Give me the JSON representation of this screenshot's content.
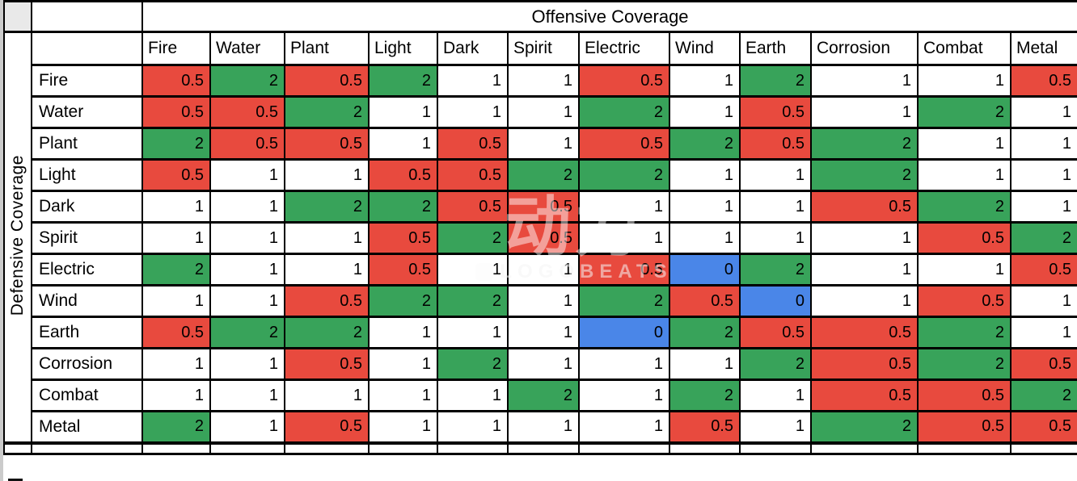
{
  "chart_data": {
    "type": "heatmap",
    "xlabel": "Offensive Coverage",
    "ylabel": "Defensive Coverage",
    "columns": [
      "Fire",
      "Water",
      "Plant",
      "Light",
      "Dark",
      "Spirit",
      "Electric",
      "Wind",
      "Earth",
      "Corrosion",
      "Combat",
      "Metal"
    ],
    "rows": [
      "Fire",
      "Water",
      "Plant",
      "Light",
      "Dark",
      "Spirit",
      "Electric",
      "Wind",
      "Earth",
      "Corrosion",
      "Combat",
      "Metal"
    ],
    "matrix": [
      [
        0.5,
        2,
        0.5,
        2,
        1,
        1,
        0.5,
        1,
        2,
        1,
        1,
        0.5
      ],
      [
        0.5,
        0.5,
        2,
        1,
        1,
        1,
        2,
        1,
        0.5,
        1,
        2,
        1
      ],
      [
        2,
        0.5,
        0.5,
        1,
        0.5,
        1,
        0.5,
        2,
        0.5,
        2,
        1,
        1
      ],
      [
        0.5,
        1,
        1,
        0.5,
        0.5,
        2,
        2,
        1,
        1,
        2,
        1,
        1
      ],
      [
        1,
        1,
        2,
        2,
        0.5,
        0.5,
        1,
        1,
        1,
        0.5,
        2,
        1
      ],
      [
        1,
        1,
        1,
        0.5,
        2,
        0.5,
        1,
        1,
        1,
        1,
        0.5,
        2
      ],
      [
        2,
        1,
        1,
        0.5,
        1,
        1,
        0.5,
        0,
        2,
        1,
        1,
        0.5
      ],
      [
        1,
        1,
        0.5,
        2,
        2,
        1,
        2,
        0.5,
        0,
        1,
        0.5,
        1
      ],
      [
        0.5,
        2,
        2,
        1,
        1,
        1,
        0,
        2,
        0.5,
        0.5,
        2,
        1
      ],
      [
        1,
        1,
        0.5,
        1,
        2,
        1,
        1,
        1,
        2,
        0.5,
        2,
        0.5
      ],
      [
        1,
        1,
        1,
        1,
        1,
        2,
        1,
        2,
        1,
        0.5,
        0.5,
        2
      ],
      [
        2,
        1,
        0.5,
        1,
        1,
        1,
        1,
        0.5,
        1,
        2,
        0.5,
        0.5
      ]
    ],
    "value_colors": {
      "0": "#4a86e8",
      "0.5": "#e84a3e",
      "1": "#ffffff",
      "2": "#38a35a"
    },
    "legend_position": "none",
    "grid": true
  },
  "watermark": {
    "text_cjk": "动力",
    "text_latin": "LOGOBEATS"
  }
}
